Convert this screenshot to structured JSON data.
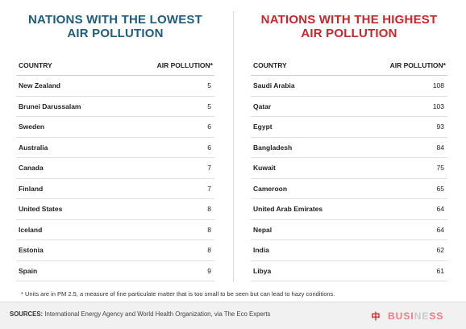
{
  "left": {
    "title_line1": "NATIONS WITH THE LOWEST",
    "title_line2": "AIR POLLUTION",
    "col_country": "COUNTRY",
    "col_value": "AIR POLLUTION*",
    "rows": [
      {
        "country": "New Zealand",
        "value": "5"
      },
      {
        "country": "Brunei Darussalam",
        "value": "5"
      },
      {
        "country": "Sweden",
        "value": "6"
      },
      {
        "country": "Australia",
        "value": "6"
      },
      {
        "country": "Canada",
        "value": "7"
      },
      {
        "country": "Finland",
        "value": "7"
      },
      {
        "country": "United States",
        "value": "8"
      },
      {
        "country": "Iceland",
        "value": "8"
      },
      {
        "country": "Estonia",
        "value": "8"
      },
      {
        "country": "Spain",
        "value": "9"
      }
    ]
  },
  "right": {
    "title_line1": "NATIONS WITH THE HIGHEST",
    "title_line2": "AIR POLLUTION",
    "col_country": "COUNTRY",
    "col_value": "AIR POLLUTION*",
    "rows": [
      {
        "country": "Saudi Arabia",
        "value": "108"
      },
      {
        "country": "Qatar",
        "value": "103"
      },
      {
        "country": "Egypt",
        "value": "93"
      },
      {
        "country": "Bangladesh",
        "value": "84"
      },
      {
        "country": "Kuwait",
        "value": "75"
      },
      {
        "country": "Cameroon",
        "value": "65"
      },
      {
        "country": "United Arab Emirates",
        "value": "64"
      },
      {
        "country": "Nepal",
        "value": "64"
      },
      {
        "country": "India",
        "value": "62"
      },
      {
        "country": "Libya",
        "value": "61"
      }
    ]
  },
  "footnote": "* Units are in PM 2.5, a measure of fine particulate matter that is too small to be seen but can lead to hazy conditions.",
  "sources_label": "SOURCES:",
  "sources_text": "International Energy Agency and World Health Organization, via The Eco Experts",
  "watermark": {
    "mark": "中",
    "text_a": "BUSI",
    "text_b": "NE",
    "text_c": "SS"
  },
  "colors": {
    "low_title": "#1f5c7c",
    "high_title": "#c8262b"
  }
}
